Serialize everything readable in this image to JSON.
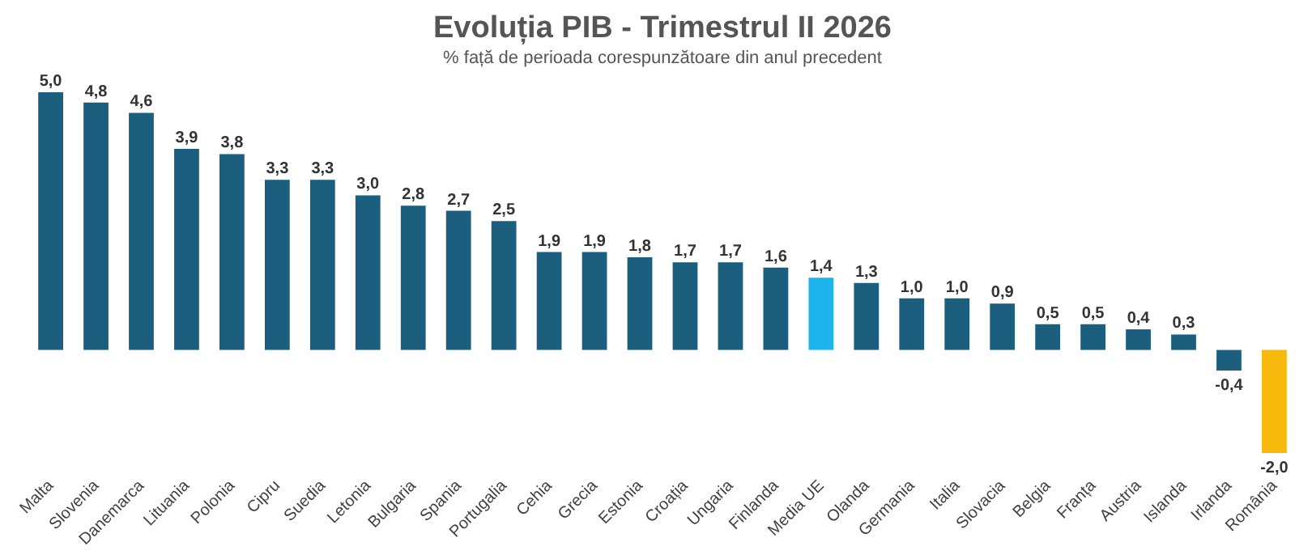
{
  "chart_data": {
    "type": "bar",
    "title": "Evoluția PIB -  Trimestrul II 2026",
    "subtitle": "% față de perioada corespunzătoare din anul precedent",
    "categories": [
      "Malta",
      "Slovenia",
      "Danemarca",
      "Lituania",
      "Polonia",
      "Cipru",
      "Suedia",
      "Letonia",
      "Bulgaria",
      "Spania",
      "Portugalia",
      "Cehia",
      "Grecia",
      "Estonia",
      "Croația",
      "Ungaria",
      "Finlanda",
      "Media UE",
      "Olanda",
      "Germania",
      "Italia",
      "Slovacia",
      "Belgia",
      "Franța",
      "Austria",
      "Islanda",
      "Irlanda",
      "România"
    ],
    "values": [
      5.0,
      4.8,
      4.6,
      3.9,
      3.8,
      3.3,
      3.3,
      3.0,
      2.8,
      2.7,
      2.5,
      1.9,
      1.9,
      1.8,
      1.7,
      1.7,
      1.6,
      1.4,
      1.3,
      1.0,
      1.0,
      0.9,
      0.5,
      0.5,
      0.4,
      0.3,
      -0.4,
      -2.0
    ],
    "value_labels": [
      "5,0",
      "4,8",
      "4,6",
      "3,9",
      "3,8",
      "3,3",
      "3,3",
      "3,0",
      "2,8",
      "2,7",
      "2,5",
      "1,9",
      "1,9",
      "1,8",
      "1,7",
      "1,7",
      "1,6",
      "1,4",
      "1,3",
      "1,0",
      "1,0",
      "0,9",
      "0,5",
      "0,5",
      "0,4",
      "0,3",
      "-0,4",
      "-2,0"
    ],
    "colors": [
      "#1b5e7e",
      "#1b5e7e",
      "#1b5e7e",
      "#1b5e7e",
      "#1b5e7e",
      "#1b5e7e",
      "#1b5e7e",
      "#1b5e7e",
      "#1b5e7e",
      "#1b5e7e",
      "#1b5e7e",
      "#1b5e7e",
      "#1b5e7e",
      "#1b5e7e",
      "#1b5e7e",
      "#1b5e7e",
      "#1b5e7e",
      "#1eb4ee",
      "#1b5e7e",
      "#1b5e7e",
      "#1b5e7e",
      "#1b5e7e",
      "#1b5e7e",
      "#1b5e7e",
      "#1b5e7e",
      "#1b5e7e",
      "#1b5e7e",
      "#f7b90c"
    ],
    "tick_labels": "x"
  }
}
